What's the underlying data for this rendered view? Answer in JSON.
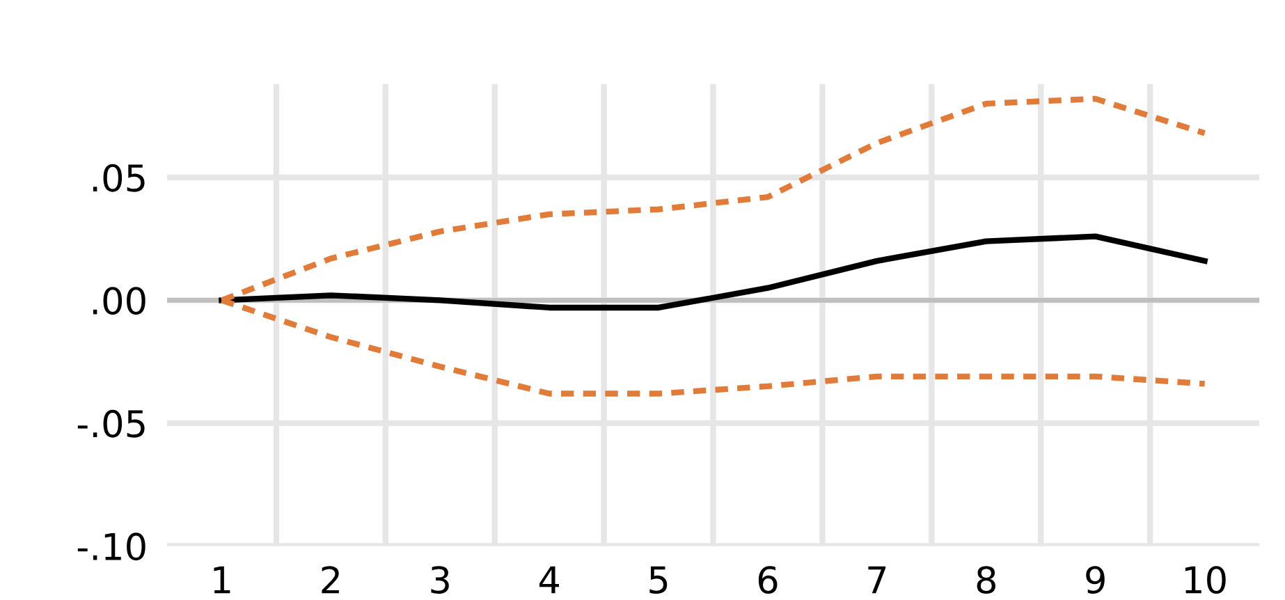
{
  "chart_data": {
    "type": "line",
    "categories": [
      "1",
      "2",
      "3",
      "4",
      "5",
      "6",
      "7",
      "8",
      "9",
      "10"
    ],
    "series": [
      {
        "color": "#000000",
        "line_style": "solid",
        "values": [
          0.0,
          0.002,
          0.0,
          -0.003,
          -0.003,
          0.005,
          0.016,
          0.024,
          0.026,
          0.016
        ]
      },
      {
        "color": "#e07b39",
        "line_style": "dashed",
        "values": [
          0.0,
          0.017,
          0.028,
          0.035,
          0.037,
          0.042,
          0.064,
          0.08,
          0.082,
          0.068
        ]
      },
      {
        "color": "#e07b39",
        "line_style": "dashed",
        "values": [
          0.0,
          -0.015,
          -0.027,
          -0.038,
          -0.038,
          -0.035,
          -0.031,
          -0.031,
          -0.031,
          -0.034
        ]
      }
    ],
    "ylim": [
      -0.1,
      0.088
    ],
    "yticks": [
      {
        "value": -0.1,
        "label": "-.10"
      },
      {
        "value": -0.05,
        "label": "-.05"
      },
      {
        "value": 0,
        "label": ".00"
      },
      {
        "value": 0.05,
        "label": ".05"
      }
    ],
    "ref_lines": [
      {
        "axis": "y",
        "value": 0,
        "color": "#bfbfbf"
      }
    ],
    "grid": true,
    "legend": false,
    "marker": "none"
  }
}
